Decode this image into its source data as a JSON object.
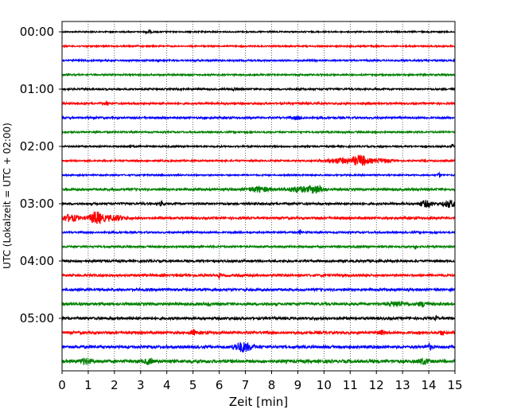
{
  "chart_data": {
    "type": "line",
    "title": "",
    "xlabel": "Zeit  [min]",
    "ylabel": "UTC (Lokalzeit = UTC + 02:00)",
    "xlim": [
      0,
      15
    ],
    "x_ticks": [
      0,
      1,
      2,
      3,
      4,
      5,
      6,
      7,
      8,
      9,
      10,
      11,
      12,
      13,
      14,
      15
    ],
    "x_tick_labels": [
      "0",
      "1",
      "2",
      "3",
      "4",
      "5",
      "6",
      "7",
      "8",
      "9",
      "10",
      "11",
      "12",
      "13",
      "14",
      "15"
    ],
    "y_tick_labels": [
      "00:00",
      "01:00",
      "02:00",
      "03:00",
      "04:00",
      "05:00"
    ],
    "y_tick_rows": [
      0,
      4,
      8,
      12,
      16,
      20
    ],
    "vertical_gridlines": "dotted",
    "trace_interval_minutes": 15,
    "trace_colors": [
      "#000000",
      "#ff0000",
      "#0000ff",
      "#008000"
    ],
    "traces": [
      {
        "start": "00:00",
        "color": "#000000",
        "noise": 0.8,
        "events": [
          {
            "t": 3.3,
            "amp": 2.0,
            "dur": 0.1
          }
        ]
      },
      {
        "start": "00:15",
        "color": "#ff0000",
        "noise": 0.9,
        "events": [
          {
            "t": 12.0,
            "amp": 1.6,
            "dur": 0.1
          }
        ]
      },
      {
        "start": "00:30",
        "color": "#0000ff",
        "noise": 1.0,
        "events": []
      },
      {
        "start": "00:45",
        "color": "#008000",
        "noise": 1.0,
        "events": []
      },
      {
        "start": "01:00",
        "color": "#000000",
        "noise": 1.1,
        "events": [
          {
            "t": 6.6,
            "amp": 1.4,
            "dur": 0.1
          }
        ]
      },
      {
        "start": "01:15",
        "color": "#ff0000",
        "noise": 1.2,
        "events": [
          {
            "t": 1.7,
            "amp": 2.8,
            "dur": 0.06
          }
        ]
      },
      {
        "start": "01:30",
        "color": "#0000ff",
        "noise": 1.2,
        "events": [
          {
            "t": 9.0,
            "amp": 1.5,
            "dur": 0.2
          }
        ]
      },
      {
        "start": "01:45",
        "color": "#008000",
        "noise": 1.0,
        "events": []
      },
      {
        "start": "02:00",
        "color": "#000000",
        "noise": 1.0,
        "events": [
          {
            "t": 2.6,
            "amp": 2.0,
            "dur": 0.05
          },
          {
            "t": 14.9,
            "amp": 2.5,
            "dur": 0.05
          }
        ]
      },
      {
        "start": "02:15",
        "color": "#ff0000",
        "noise": 1.0,
        "events": [
          {
            "t": 10.6,
            "amp": 3.2,
            "dur": 0.5
          },
          {
            "t": 11.4,
            "amp": 6.5,
            "dur": 0.3
          },
          {
            "t": 12.2,
            "amp": 2.2,
            "dur": 0.4
          }
        ]
      },
      {
        "start": "02:30",
        "color": "#0000ff",
        "noise": 0.9,
        "events": [
          {
            "t": 14.4,
            "amp": 3.0,
            "dur": 0.05
          }
        ]
      },
      {
        "start": "02:45",
        "color": "#008000",
        "noise": 1.4,
        "events": [
          {
            "t": 7.5,
            "amp": 3.0,
            "dur": 0.4
          },
          {
            "t": 9.0,
            "amp": 3.0,
            "dur": 0.4
          },
          {
            "t": 9.7,
            "amp": 4.2,
            "dur": 0.3
          }
        ]
      },
      {
        "start": "03:00",
        "color": "#000000",
        "noise": 1.3,
        "events": [
          {
            "t": 3.8,
            "amp": 2.2,
            "dur": 0.1
          },
          {
            "t": 13.9,
            "amp": 3.5,
            "dur": 0.25
          },
          {
            "t": 14.8,
            "amp": 4.0,
            "dur": 0.25
          }
        ]
      },
      {
        "start": "03:15",
        "color": "#ff0000",
        "noise": 1.4,
        "events": [
          {
            "t": 0.3,
            "amp": 3.5,
            "dur": 0.4
          },
          {
            "t": 1.3,
            "amp": 7.5,
            "dur": 0.25
          },
          {
            "t": 2.0,
            "amp": 3.0,
            "dur": 0.4
          }
        ]
      },
      {
        "start": "03:30",
        "color": "#0000ff",
        "noise": 1.1,
        "events": [
          {
            "t": 9.1,
            "amp": 2.8,
            "dur": 0.05
          }
        ]
      },
      {
        "start": "03:45",
        "color": "#008000",
        "noise": 1.2,
        "events": [
          {
            "t": 13.5,
            "amp": 2.4,
            "dur": 0.05
          }
        ]
      },
      {
        "start": "04:00",
        "color": "#000000",
        "noise": 1.4,
        "events": []
      },
      {
        "start": "04:15",
        "color": "#ff0000",
        "noise": 1.5,
        "events": [
          {
            "t": 6.0,
            "amp": 2.2,
            "dur": 0.05
          }
        ]
      },
      {
        "start": "04:30",
        "color": "#0000ff",
        "noise": 1.5,
        "events": []
      },
      {
        "start": "04:45",
        "color": "#008000",
        "noise": 1.6,
        "events": [
          {
            "t": 5.6,
            "amp": 2.0,
            "dur": 0.05
          },
          {
            "t": 12.8,
            "amp": 2.6,
            "dur": 0.3
          },
          {
            "t": 13.8,
            "amp": 2.6,
            "dur": 0.2
          }
        ]
      },
      {
        "start": "05:00",
        "color": "#000000",
        "noise": 1.6,
        "events": [
          {
            "t": 14.3,
            "amp": 2.3,
            "dur": 0.05
          }
        ]
      },
      {
        "start": "05:15",
        "color": "#ff0000",
        "noise": 1.6,
        "events": [
          {
            "t": 5.0,
            "amp": 3.2,
            "dur": 0.1
          },
          {
            "t": 12.2,
            "amp": 2.2,
            "dur": 0.1
          },
          {
            "t": 14.5,
            "amp": 2.2,
            "dur": 0.1
          }
        ]
      },
      {
        "start": "05:30",
        "color": "#0000ff",
        "noise": 1.7,
        "events": [
          {
            "t": 6.9,
            "amp": 5.5,
            "dur": 0.35
          },
          {
            "t": 14.0,
            "amp": 3.0,
            "dur": 0.15
          }
        ]
      },
      {
        "start": "05:45",
        "color": "#008000",
        "noise": 2.0,
        "events": [
          {
            "t": 0.9,
            "amp": 3.0,
            "dur": 0.2
          },
          {
            "t": 3.3,
            "amp": 2.8,
            "dur": 0.15
          },
          {
            "t": 13.8,
            "amp": 2.8,
            "dur": 0.2
          }
        ]
      }
    ]
  }
}
